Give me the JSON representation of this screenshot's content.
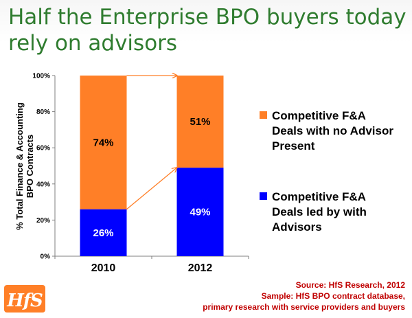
{
  "title": {
    "line1": "Half the Enterprise BPO buyers today",
    "line2": "rely on advisors"
  },
  "colors": {
    "title": "#2f7c2f",
    "no_advisor": "#ff7f27",
    "with_advisor": "#0000ff",
    "source_text": "#c00000"
  },
  "chart_data": {
    "type": "bar",
    "stacked": true,
    "categories": [
      "2010",
      "2012"
    ],
    "series": [
      {
        "name": "Competitive F&A Deals led by with Advisors",
        "color": "#0000ff",
        "values": [
          26,
          49
        ],
        "labels": [
          "26%",
          "49%"
        ]
      },
      {
        "name": "Competitive F&A Deals with no Advisor Present",
        "color": "#ff7f27",
        "values": [
          74,
          51
        ],
        "labels": [
          "74%",
          "51%"
        ]
      }
    ],
    "ylabel_lines": [
      "% Total Finance & Accounting",
      "BPO Contracts"
    ],
    "ylim": [
      0,
      100
    ],
    "yticks": [
      0,
      20,
      40,
      60,
      80,
      100
    ],
    "ytick_labels": [
      "0%",
      "20%",
      "40%",
      "60%",
      "80%",
      "100%"
    ],
    "grid": false,
    "legend_position": "right",
    "annotations": [
      "arrow connecting 2010 and 2012 bar tops",
      "arrow connecting 2010 and 2012 segment boundaries"
    ]
  },
  "legend": [
    {
      "color": "#ff7f27",
      "lines": [
        "Competitive F&A",
        "Deals with no Advisor",
        "Present"
      ]
    },
    {
      "color": "#0000ff",
      "lines": [
        "Competitive F&A",
        "Deals led by with",
        "Advisors"
      ]
    }
  ],
  "logo": {
    "text": "HfS"
  },
  "source": {
    "line1": "Source:  HfS Research, 2012",
    "line2": "Sample:  HfS BPO contract database,",
    "line3": "primary research with service providers and buyers"
  }
}
